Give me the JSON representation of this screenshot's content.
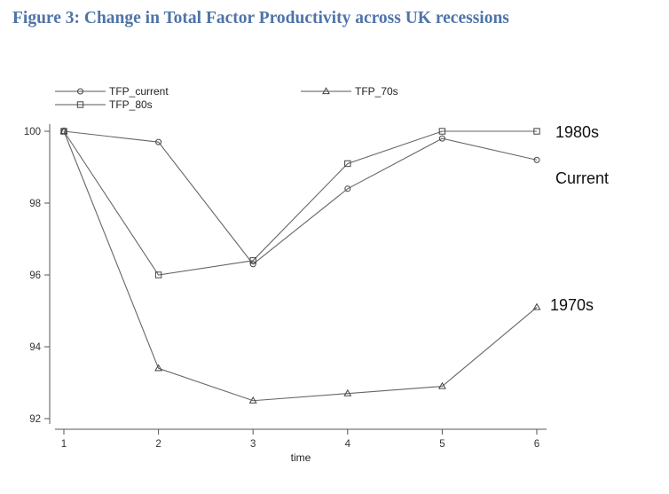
{
  "title": "Figure 3: Change in Total Factor Productivity across UK recessions",
  "chart_data": {
    "type": "line",
    "x": [
      1,
      2,
      3,
      4,
      5,
      6
    ],
    "xlabel": "time",
    "ylabel": "",
    "xlim": [
      1,
      6
    ],
    "ylim": [
      92,
      100
    ],
    "yticks": [
      92,
      94,
      96,
      98,
      100
    ],
    "grid": false,
    "legend_placement": "top",
    "series": [
      {
        "name": "TFP_current",
        "marker": "circle",
        "values": [
          100,
          99.7,
          96.3,
          98.4,
          99.8,
          99.2
        ]
      },
      {
        "name": "TFP_70s",
        "marker": "triangle",
        "values": [
          100,
          93.4,
          92.5,
          92.7,
          92.9,
          95.1
        ]
      },
      {
        "name": "TFP_80s",
        "marker": "square",
        "values": [
          100,
          96.0,
          96.4,
          99.1,
          100,
          100
        ]
      }
    ],
    "annotations": [
      {
        "text": "1980s",
        "series": "TFP_80s"
      },
      {
        "text": "Current",
        "series": "TFP_current"
      },
      {
        "text": "1970s",
        "series": "TFP_70s"
      }
    ]
  }
}
